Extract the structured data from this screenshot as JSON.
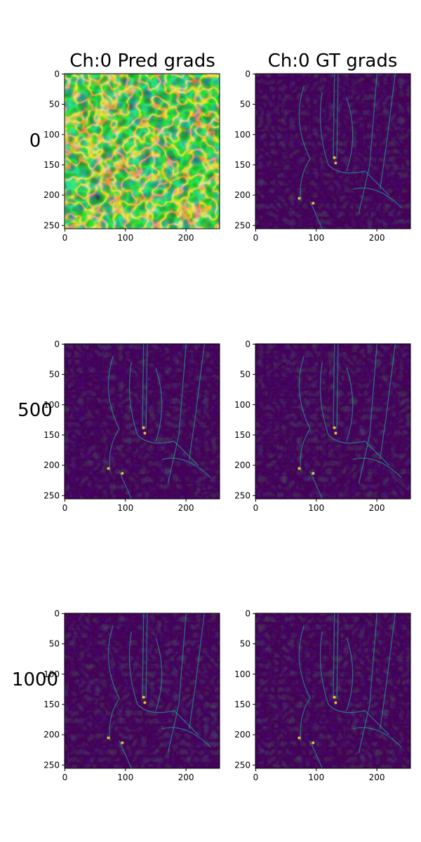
{
  "columns": [
    {
      "title": "Ch:0 Pred grads"
    },
    {
      "title": "Ch:0 GT grads"
    }
  ],
  "rows": [
    {
      "label": "0"
    },
    {
      "label": "500"
    },
    {
      "label": "1000"
    }
  ],
  "colormap": "viridis",
  "colors": {
    "viridis_low": "#440154",
    "viridis_mid": "#21918c",
    "viridis_high": "#fde725"
  },
  "chart_data": [
    {
      "type": "heatmap",
      "row": "0",
      "column": "Ch:0 Pred grads",
      "texture": "noise",
      "xlim": [
        0,
        255
      ],
      "ylim": [
        255,
        0
      ],
      "xticks": [
        0,
        100,
        200
      ],
      "yticks": [
        0,
        50,
        100,
        150,
        200,
        250
      ]
    },
    {
      "type": "heatmap",
      "row": "0",
      "column": "Ch:0 GT grads",
      "texture": "edges",
      "xlim": [
        0,
        255
      ],
      "ylim": [
        255,
        0
      ],
      "xticks": [
        0,
        100,
        200
      ],
      "yticks": [
        0,
        50,
        100,
        150,
        200,
        250
      ]
    },
    {
      "type": "heatmap",
      "row": "500",
      "column": "Ch:0 Pred grads",
      "texture": "edges",
      "xlim": [
        0,
        255
      ],
      "ylim": [
        255,
        0
      ],
      "xticks": [
        0,
        100,
        200
      ],
      "yticks": [
        0,
        50,
        100,
        150,
        200,
        250
      ]
    },
    {
      "type": "heatmap",
      "row": "500",
      "column": "Ch:0 GT grads",
      "texture": "edges",
      "xlim": [
        0,
        255
      ],
      "ylim": [
        255,
        0
      ],
      "xticks": [
        0,
        100,
        200
      ],
      "yticks": [
        0,
        50,
        100,
        150,
        200,
        250
      ]
    },
    {
      "type": "heatmap",
      "row": "1000",
      "column": "Ch:0 Pred grads",
      "texture": "edges",
      "xlim": [
        0,
        255
      ],
      "ylim": [
        255,
        0
      ],
      "xticks": [
        0,
        100,
        200
      ],
      "yticks": [
        0,
        50,
        100,
        150,
        200,
        250
      ]
    },
    {
      "type": "heatmap",
      "row": "1000",
      "column": "Ch:0 GT grads",
      "texture": "edges",
      "xlim": [
        0,
        255
      ],
      "ylim": [
        255,
        0
      ],
      "xticks": [
        0,
        100,
        200
      ],
      "yticks": [
        0,
        50,
        100,
        150,
        200,
        250
      ]
    }
  ]
}
